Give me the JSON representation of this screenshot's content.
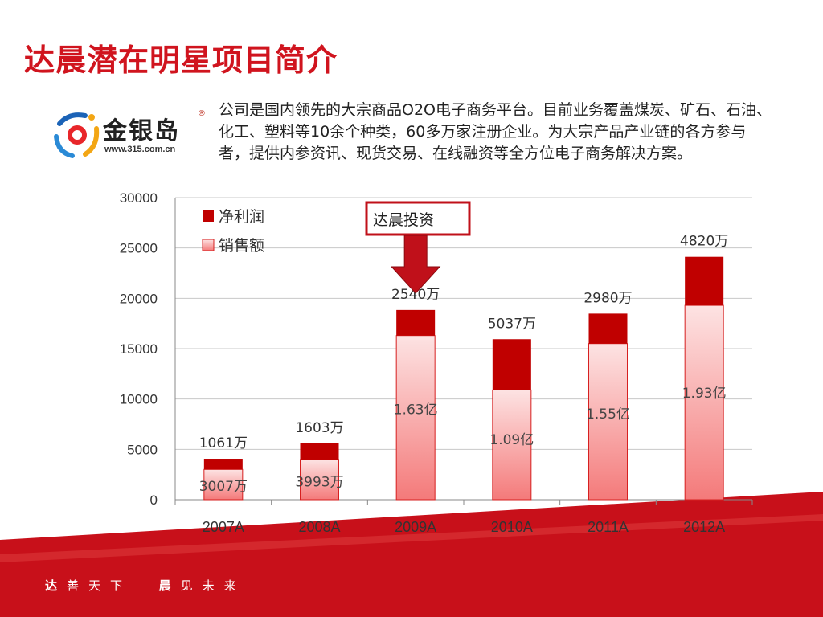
{
  "page": {
    "title": "达晨潜在明星项目简介",
    "description": "公司是国内领先的大宗商品O2O电子商务平台。目前业务覆盖煤炭、矿石、石油、化工、塑料等10余个种类，60多万家注册企业。为大宗产品产业链的各方参与者，提供内参资讯、现货交易、在线融资等全方位电子商务解决方案。",
    "footer_left_bold": "达",
    "footer_left_rest": "善天下",
    "footer_right_bold": "晨",
    "footer_right_rest": "见未来"
  },
  "logo": {
    "name": "金银岛",
    "url": "www.315.com.cn",
    "reg_mark": "®"
  },
  "colors": {
    "accent": "#d0141e",
    "profit": "#c00000",
    "sales_top": "#fde3e3",
    "sales_bottom": "#f47a7a"
  },
  "annotation": {
    "label": "达晨投资",
    "year": "2009A"
  },
  "chart_data": {
    "type": "bar",
    "stacked": true,
    "categories": [
      "2007A",
      "2008A",
      "2009A",
      "2010A",
      "2011A",
      "2012A"
    ],
    "ylim": [
      0,
      30000
    ],
    "yticks": [
      0,
      5000,
      10000,
      15000,
      20000,
      25000,
      30000
    ],
    "grid": true,
    "legend_position": "top-left",
    "series": [
      {
        "name": "销售额",
        "values": [
          3007,
          3993,
          16300,
          10900,
          15500,
          19300
        ],
        "labels": [
          "3007万",
          "3993万",
          "1.63亿",
          "1.09亿",
          "1.55亿",
          "1.93亿"
        ]
      },
      {
        "name": "净利润",
        "values": [
          1061,
          1603,
          2540,
          5037,
          2980,
          4820
        ],
        "labels": [
          "1061万",
          "1603万",
          "2540万",
          "5037万",
          "2980万",
          "4820万"
        ]
      }
    ]
  }
}
